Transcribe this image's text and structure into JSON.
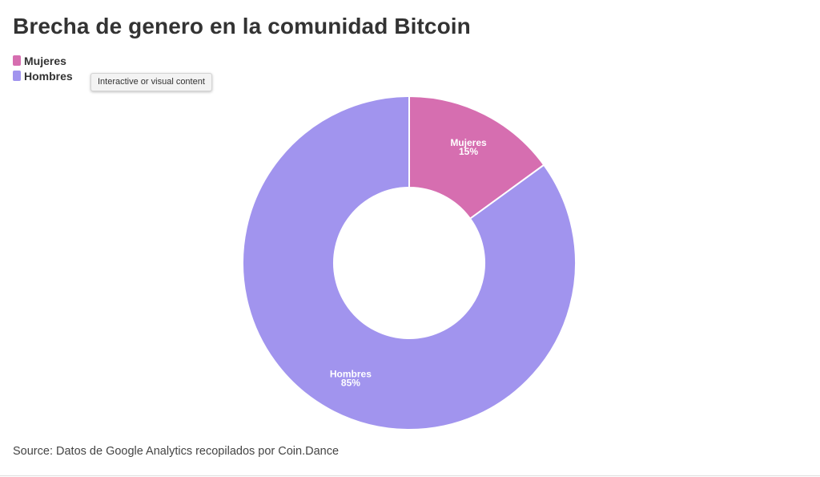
{
  "header": {
    "title": "Brecha de genero en la comunidad Bitcoin"
  },
  "tooltip": {
    "text": "Interactive or visual content"
  },
  "chart_data": {
    "type": "pie",
    "variant": "donut",
    "title": "Brecha de genero en la comunidad Bitcoin",
    "slices": [
      {
        "label": "Mujeres",
        "value": 15,
        "display": "15%",
        "color": "#d66eb0"
      },
      {
        "label": "Hombres",
        "value": 85,
        "display": "85%",
        "color": "#a194ee"
      }
    ],
    "legend": {
      "position": "top-left",
      "items": [
        {
          "label": "Mujeres",
          "color": "#d66eb0"
        },
        {
          "label": "Hombres",
          "color": "#a194ee"
        }
      ]
    },
    "source": "Source: Datos de Google Analytics recopilados por Coin.Dance"
  }
}
